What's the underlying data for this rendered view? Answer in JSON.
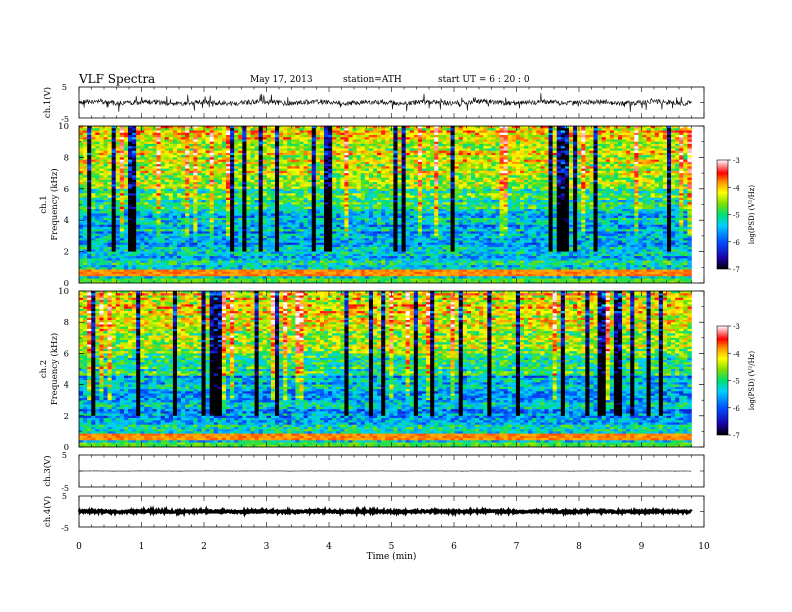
{
  "header": {
    "title": "VLF  Spectra",
    "date": "May 17, 2013",
    "station": "station=ATH",
    "start": "start  UT  =    6  : 20 : 0"
  },
  "chart_data": [
    {
      "type": "line",
      "panel": "ch1-waveform",
      "ylabel": "ch.1(V)",
      "ylim": [
        -5,
        5
      ],
      "yticks": [
        "5",
        "-5"
      ],
      "xlim": [
        0,
        10
      ],
      "description_values": {
        "baseline_v": 0,
        "typical_amplitude_v": 0.8,
        "end_min": 9.8
      }
    },
    {
      "type": "heatmap",
      "panel": "ch1-spectrogram",
      "ylabel_channel": "ch.1",
      "ylabel": "Frequency  (kHz)",
      "ylim": [
        0,
        10
      ],
      "yticks": [
        "0",
        "2",
        "4",
        "6",
        "8",
        "10"
      ],
      "xlim": [
        0,
        10
      ],
      "data_end_min": 9.8,
      "colorbar": {
        "label": "log(PSD) (V²/Hz)",
        "range": [
          -7,
          -3
        ],
        "ticks": [
          "-3",
          "-4",
          "-5",
          "-6",
          "-7"
        ]
      }
    },
    {
      "type": "heatmap",
      "panel": "ch2-spectrogram",
      "ylabel_channel": "ch.2",
      "ylabel": "Frequency  (kHz)",
      "ylim": [
        0,
        10
      ],
      "yticks": [
        "0",
        "2",
        "4",
        "6",
        "8",
        "10"
      ],
      "xlim": [
        0,
        10
      ],
      "data_end_min": 9.8,
      "colorbar": {
        "label": "log(PSD) (V²/Hz)",
        "range": [
          -7,
          -3
        ],
        "ticks": [
          "-3",
          "-4",
          "-5",
          "-6",
          "-7"
        ]
      }
    },
    {
      "type": "line",
      "panel": "ch3-waveform",
      "ylabel": "ch.3(V)",
      "ylim": [
        -5,
        5
      ],
      "yticks": [
        "5",
        "-5"
      ],
      "xlim": [
        0,
        10
      ],
      "description_values": {
        "baseline_v": 0,
        "typical_amplitude_v": 0.05,
        "end_min": 9.8
      }
    },
    {
      "type": "line",
      "panel": "ch4-waveform",
      "ylabel": "ch.4(V)",
      "ylim": [
        -5,
        5
      ],
      "yticks": [
        "5",
        "-5"
      ],
      "xlim": [
        0,
        10
      ],
      "xlabel": "Time  (min)",
      "xticks": [
        "0",
        "1",
        "2",
        "3",
        "4",
        "5",
        "6",
        "7",
        "8",
        "9",
        "10"
      ],
      "description_values": {
        "baseline_v": 0,
        "typical_amplitude_v": 0.3,
        "end_min": 9.8
      }
    }
  ]
}
